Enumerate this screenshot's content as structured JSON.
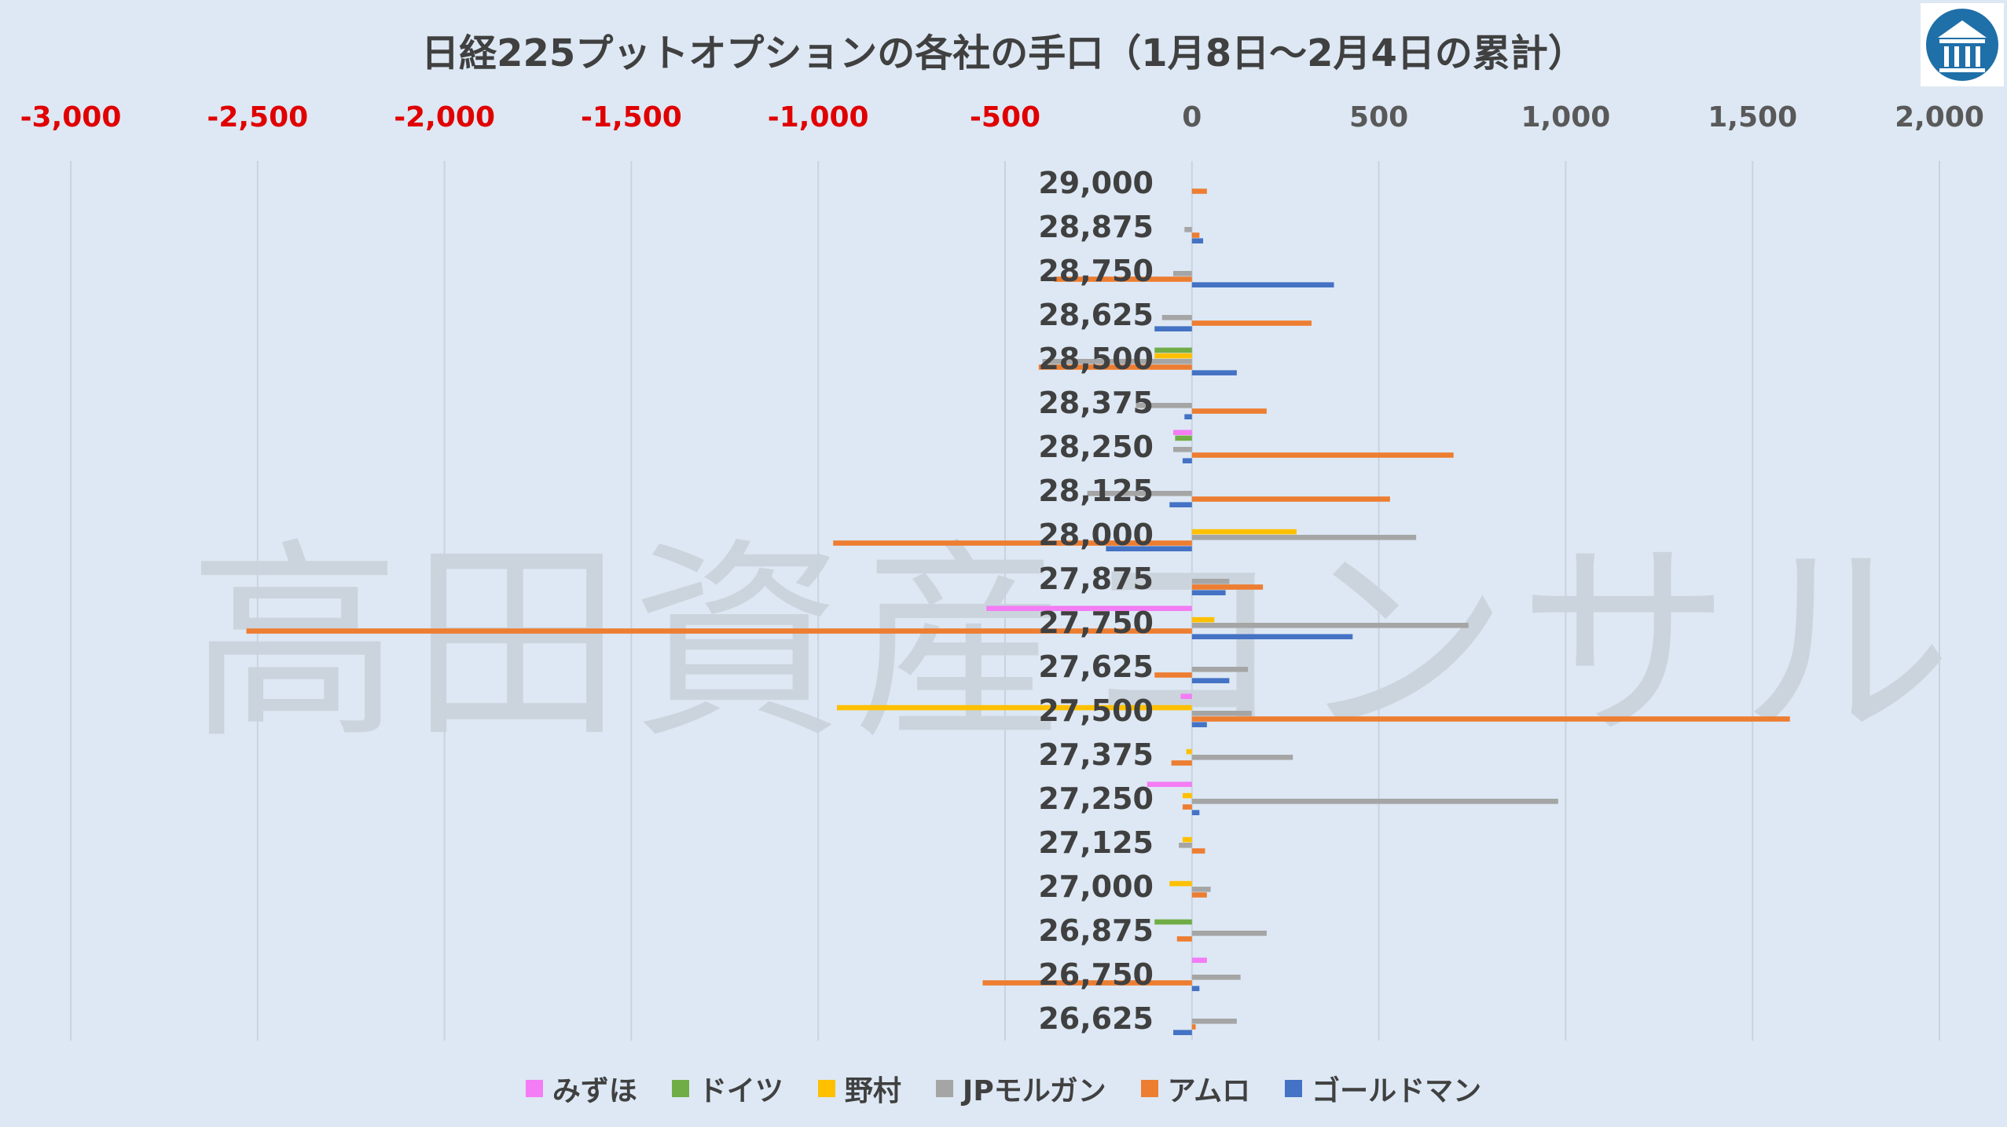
{
  "watermark": "高田資産コンサル",
  "colors": {
    "negative_tick": "#e00000",
    "positive_tick": "#595959",
    "grid": "#c8d3de",
    "category_text": "#404040"
  },
  "chart_data": {
    "type": "bar",
    "orientation": "horizontal",
    "title": "日経225プットオプションの各社の手口（1月8日～2月4日の累計）",
    "x_range": [
      -3000,
      2000
    ],
    "x_ticks": [
      {
        "value": -3000,
        "label": "-3,000"
      },
      {
        "value": -2500,
        "label": "-2,500"
      },
      {
        "value": -2000,
        "label": "-2,000"
      },
      {
        "value": -1500,
        "label": "-1,500"
      },
      {
        "value": -1000,
        "label": "-1,000"
      },
      {
        "value": -500,
        "label": "-500"
      },
      {
        "value": 0,
        "label": "0"
      },
      {
        "value": 500,
        "label": "500"
      },
      {
        "value": 1000,
        "label": "1,000"
      },
      {
        "value": 1500,
        "label": "1,500"
      },
      {
        "value": 2000,
        "label": "2,000"
      }
    ],
    "grid": true,
    "legend_position": "bottom",
    "categories": [
      "29,000",
      "28,875",
      "28,750",
      "28,625",
      "28,500",
      "28,375",
      "28,250",
      "28,125",
      "28,000",
      "27,875",
      "27,750",
      "27,625",
      "27,500",
      "27,375",
      "27,250",
      "27,125",
      "27,000",
      "26,875",
      "26,750",
      "26,625"
    ],
    "series": [
      {
        "name": "みずほ",
        "color": "#f47cf4",
        "values": [
          0,
          0,
          0,
          0,
          0,
          0,
          -50,
          0,
          0,
          0,
          -550,
          0,
          -30,
          0,
          -120,
          0,
          0,
          0,
          40,
          0
        ]
      },
      {
        "name": "ドイツ",
        "color": "#70ad47",
        "values": [
          0,
          0,
          0,
          0,
          -100,
          0,
          -45,
          0,
          0,
          0,
          0,
          0,
          0,
          0,
          0,
          0,
          0,
          -100,
          0,
          0
        ]
      },
      {
        "name": "野村",
        "color": "#ffc000",
        "values": [
          0,
          0,
          0,
          0,
          -100,
          0,
          0,
          0,
          280,
          0,
          60,
          0,
          -950,
          -15,
          -25,
          -25,
          -60,
          0,
          0,
          0
        ]
      },
      {
        "name": "JPモルガン",
        "color": "#a5a5a5",
        "values": [
          0,
          -20,
          -50,
          -80,
          -400,
          -150,
          -50,
          -280,
          600,
          100,
          740,
          150,
          160,
          270,
          980,
          -35,
          50,
          200,
          130,
          120
        ]
      },
      {
        "name": "アムロ",
        "color": "#ed7d31",
        "values": [
          40,
          20,
          -370,
          320,
          -410,
          200,
          700,
          530,
          -960,
          190,
          -2530,
          -100,
          1600,
          -55,
          -25,
          35,
          40,
          -40,
          -560,
          10
        ]
      },
      {
        "name": "ゴールドマン",
        "color": "#4472c4",
        "values": [
          0,
          30,
          380,
          -100,
          120,
          -20,
          -25,
          -60,
          -230,
          90,
          430,
          100,
          40,
          0,
          20,
          0,
          0,
          0,
          20,
          -50
        ]
      }
    ]
  }
}
